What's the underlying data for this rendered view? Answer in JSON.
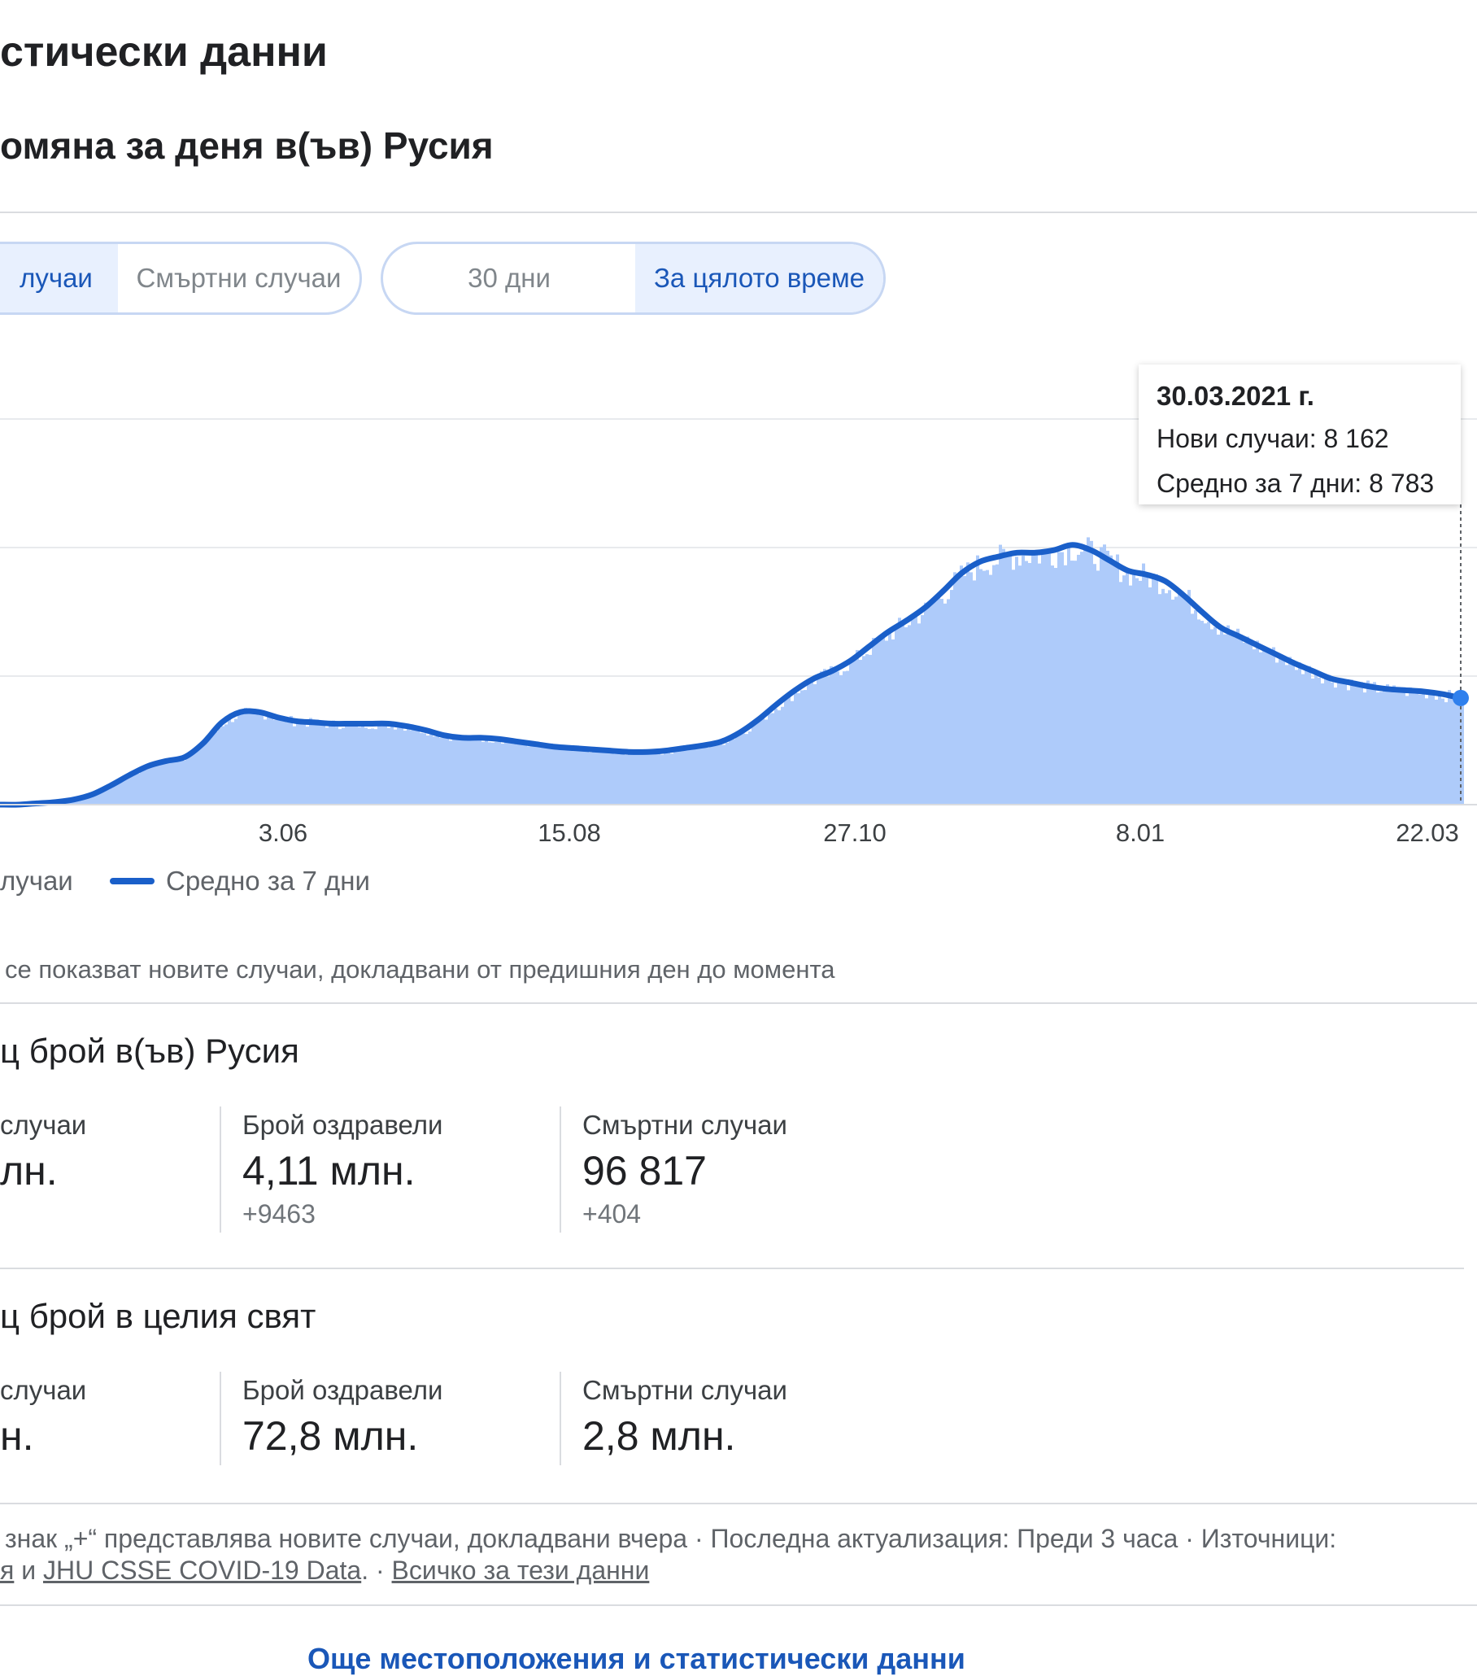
{
  "header": {
    "title": "стически данни",
    "subtitle": "омяна за деня в(ъв) Русия"
  },
  "toggles": {
    "metric": [
      {
        "label": "лучаи",
        "selected": true
      },
      {
        "label": "Смъртни случаи",
        "selected": false
      }
    ],
    "range": [
      {
        "label": "30 дни",
        "selected": false
      },
      {
        "label": "За цялото време",
        "selected": true
      }
    ]
  },
  "tooltip": {
    "date": "30.03.2021 г.",
    "new_cases": "Нови случаи: 8 162",
    "avg7": "Средно за 7 дни: 8 783"
  },
  "chart_data": {
    "type": "area",
    "x_tick_labels": [
      "3.06",
      "15.08",
      "27.10",
      "8.01",
      "22.03"
    ],
    "series": [
      {
        "name": "Средно за 7 дни",
        "y_relative": [
          0.0,
          0.0,
          0.01,
          0.02,
          0.04,
          0.08,
          0.15,
          0.23,
          0.3,
          0.34,
          0.37,
          0.48,
          0.64,
          0.72,
          0.72,
          0.68,
          0.65,
          0.64,
          0.63,
          0.63,
          0.63,
          0.63,
          0.61,
          0.58,
          0.54,
          0.52,
          0.52,
          0.51,
          0.49,
          0.47,
          0.45,
          0.44,
          0.43,
          0.42,
          0.41,
          0.41,
          0.42,
          0.44,
          0.46,
          0.49,
          0.56,
          0.66,
          0.78,
          0.89,
          0.98,
          1.04,
          1.12,
          1.23,
          1.34,
          1.43,
          1.53,
          1.66,
          1.8,
          1.89,
          1.93,
          1.96,
          1.96,
          1.98,
          2.02,
          1.98,
          1.9,
          1.82,
          1.79,
          1.74,
          1.63,
          1.5,
          1.38,
          1.31,
          1.24,
          1.17,
          1.1,
          1.04,
          0.98,
          0.95,
          0.92,
          0.9,
          0.89,
          0.88,
          0.86,
          0.83
        ]
      }
    ],
    "legend": [
      "лучаи",
      "Средно за 7 дни"
    ],
    "colors": {
      "area": "#aecbfa",
      "line": "#1a5fc9"
    }
  },
  "chart_note": "се показват новите случаи, докладвани от предишния ден до момента",
  "russia": {
    "title": "ц брой в(ъв) Русия",
    "stats": [
      {
        "label": "случаи",
        "value": "лн.",
        "delta": ""
      },
      {
        "label": "Брой оздравели",
        "value": "4,11 млн.",
        "delta": "+9463"
      },
      {
        "label": "Смъртни случаи",
        "value": "96 817",
        "delta": "+404"
      }
    ]
  },
  "world": {
    "title": "ц брой в целия свят",
    "stats": [
      {
        "label": "случаи",
        "value": "н."
      },
      {
        "label": "Брой оздравели",
        "value": "72,8 млн."
      },
      {
        "label": "Смъртни случаи",
        "value": "2,8 млн."
      }
    ]
  },
  "footer": {
    "line1": "знак „+“ представлява новите случаи, докладвани вчера  ·  Последна актуализация: Преди 3 часа  ·  Източници:",
    "line2_prefix": "я",
    "line2_and": " и ",
    "source_link": "JHU CSSE COVID-19 Data",
    "sep": ".  ·  ",
    "about_link": "Всичко за тези данни"
  },
  "more_link": "Още местоположения и статистически данни"
}
